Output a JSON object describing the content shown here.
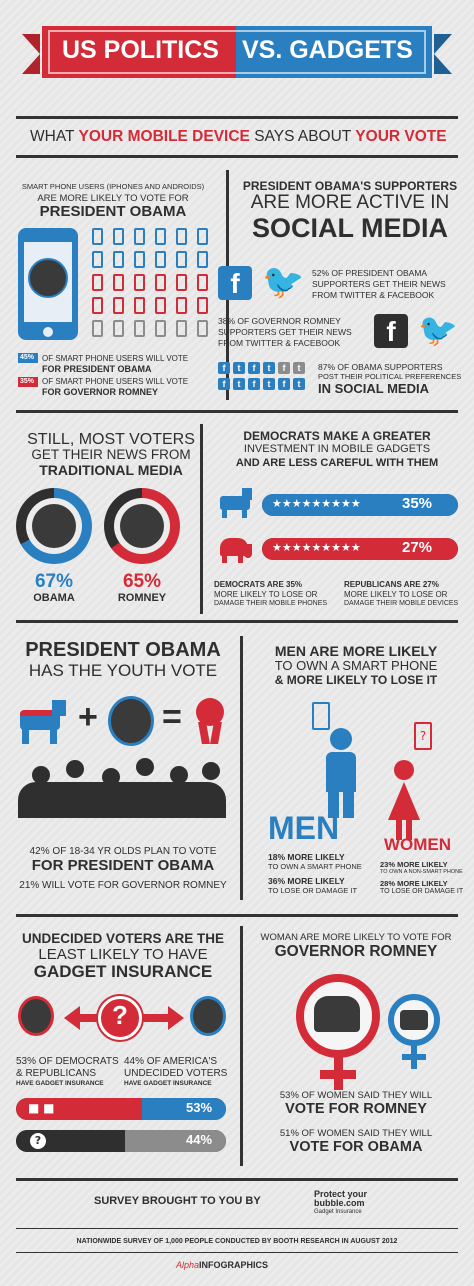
{
  "header": {
    "left": "US POLITICS",
    "right": "VS. GADGETS",
    "subtitle_a": "WHAT ",
    "subtitle_b": "YOUR MOBILE DEVICE",
    "subtitle_c": " SAYS ABOUT ",
    "subtitle_d": "YOUR VOTE"
  },
  "s1": {
    "intro": "SMART PHONE USERS (IPHONES AND ANDROIDS)",
    "intro2": "ARE MORE LIKELY TO VOTE FOR",
    "big": "PRESIDENT OBAMA",
    "l1a": "45%",
    "l1b": "OF SMART PHONE USERS WILL VOTE",
    "l1c": "FOR PRESIDENT OBAMA",
    "l2a": "35%",
    "l2b": "OF SMART PHONE USERS WILL VOTE",
    "l2c": "FOR GOVERNOR ROMNEY"
  },
  "s2": {
    "t1": "PRESIDENT OBAMA'S SUPPORTERS",
    "t2": "ARE MORE ACTIVE IN",
    "t3": "SOCIAL MEDIA",
    "p1a": "52% OF PRESIDENT OBAMA",
    "p1b": "SUPPORTERS GET THEIR NEWS",
    "p1c": "FROM TWITTER & FACEBOOK",
    "p2a": "38% OF GOVERNOR ROMNEY",
    "p2b": "SUPPORTERS GET THEIR NEWS",
    "p2c": "FROM TWITTER & FACEBOOK",
    "p3a": "87% OF OBAMA SUPPORTERS",
    "p3b": "POST THEIR POLITICAL PREFERENCES",
    "p3c": "IN SOCIAL MEDIA"
  },
  "s3": {
    "t1": "STILL, MOST VOTERS",
    "t2": "GET THEIR NEWS FROM",
    "t3": "TRADITIONAL MEDIA",
    "a_pct": "67%",
    "a_name": "OBAMA",
    "b_pct": "65%",
    "b_name": "ROMNEY"
  },
  "s4": {
    "t1": "DEMOCRATS MAKE A GREATER",
    "t2": "INVESTMENT IN MOBILE GADGETS",
    "t3": "AND ARE LESS CAREFUL WITH THEM",
    "bar1": "35%",
    "bar2": "27%",
    "d1": "DEMOCRATS ARE 35%",
    "d2": "MORE LIKELY TO LOSE OR",
    "d3": "DAMAGE THEIR MOBILE PHONES",
    "r1": "REPUBLICANS ARE 27%",
    "r2": "MORE LIKELY TO LOSE OR",
    "r3": "DAMAGE THEIR MOBILE DEVICES"
  },
  "s5": {
    "t1": "PRESIDENT OBAMA",
    "t2": "HAS THE YOUTH VOTE",
    "plus": "+",
    "eq": "=",
    "f1": "42% OF 18-34 YR OLDS PLAN TO VOTE",
    "f2": "FOR PRESIDENT OBAMA",
    "f3": "21% WILL VOTE FOR GOVERNOR ROMNEY"
  },
  "s6": {
    "t1": "MEN ARE MORE LIKELY",
    "t2": "TO OWN A SMART PHONE",
    "t3": "& MORE LIKELY TO LOSE IT",
    "men": "MEN",
    "women": "WOMEN",
    "m1": "18% MORE LIKELY",
    "m2": "TO OWN A SMART PHONE",
    "m3": "36% MORE LIKELY",
    "m4": "TO LOSE OR DAMAGE IT",
    "w1": "23% MORE LIKELY",
    "w2": "TO OWN A NON-SMART PHONE",
    "w3": "28% MORE LIKELY",
    "w4": "TO LOSE OR DAMAGE IT"
  },
  "s7": {
    "t1": "UNDECIDED VOTERS ARE THE",
    "t2": "LEAST LIKELY TO HAVE",
    "t3": "GADGET INSURANCE",
    "a1": "53% OF DEMOCRATS",
    "a2": "& REPUBLICANS",
    "a3": "HAVE GADGET INSURANCE",
    "b1": "44% OF AMERICA'S",
    "b2": "UNDECIDED VOTERS",
    "b3": "HAVE GADGET INSURANCE",
    "bar1": "53%",
    "bar2": "44%",
    "q": "?"
  },
  "s8": {
    "t1": "WOMAN ARE MORE LIKELY TO VOTE FOR",
    "t2": "GOVERNOR ROMNEY",
    "p1": "53% OF WOMEN SAID THEY WILL",
    "p2": "VOTE FOR ROMNEY",
    "p3": "51% OF WOMEN SAID THEY WILL",
    "p4": "VOTE FOR OBAMA"
  },
  "footer": {
    "survey": "SURVEY BROUGHT TO YOU BY",
    "brand1": "Protect your",
    "brand2": "bubble.com",
    "brand3": "Gadget Insurance",
    "note": "NATIONWIDE SURVEY OF 1,000 PEOPLE CONDUCTED BY BOOTH RESEARCH IN AUGUST 2012",
    "credit_a": "Alpha",
    "credit_b": "INFOGRAPHICS"
  },
  "colors": {
    "blue": "#2a7fc1",
    "red": "#d32b37",
    "dark": "#2f2f2f"
  }
}
